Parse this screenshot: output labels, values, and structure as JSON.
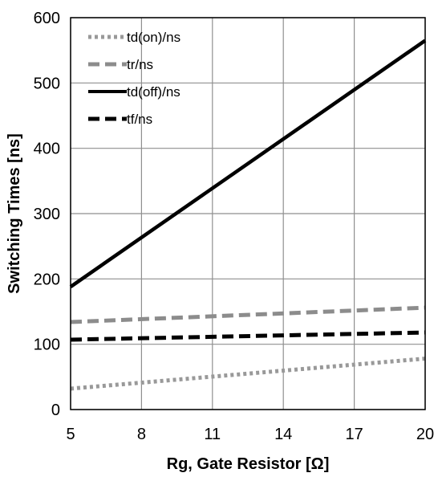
{
  "chart_data": {
    "type": "line",
    "title": "",
    "xlabel": "Rg, Gate Resistor [Ω]",
    "ylabel": "Switching Times [ns]",
    "xlim": [
      5,
      20
    ],
    "ylim": [
      0,
      600
    ],
    "xticks": [
      5,
      8,
      11,
      14,
      17,
      20
    ],
    "yticks": [
      0,
      100,
      200,
      300,
      400,
      500,
      600
    ],
    "grid": true,
    "legend_position": "top-left",
    "series": [
      {
        "name": "td(on)/ns",
        "x": [
          5,
          20
        ],
        "y": [
          32,
          78
        ],
        "color": "#999999",
        "dash": "dotted"
      },
      {
        "name": "tr/ns",
        "x": [
          5,
          20
        ],
        "y": [
          134,
          156
        ],
        "color": "#8c8c8c",
        "dash": "dashed"
      },
      {
        "name": "td(off)/ns",
        "x": [
          5,
          20
        ],
        "y": [
          188,
          565
        ],
        "color": "#000000",
        "dash": "solid"
      },
      {
        "name": "tf/ns",
        "x": [
          5,
          20
        ],
        "y": [
          107,
          118
        ],
        "color": "#000000",
        "dash": "dashed"
      }
    ]
  }
}
